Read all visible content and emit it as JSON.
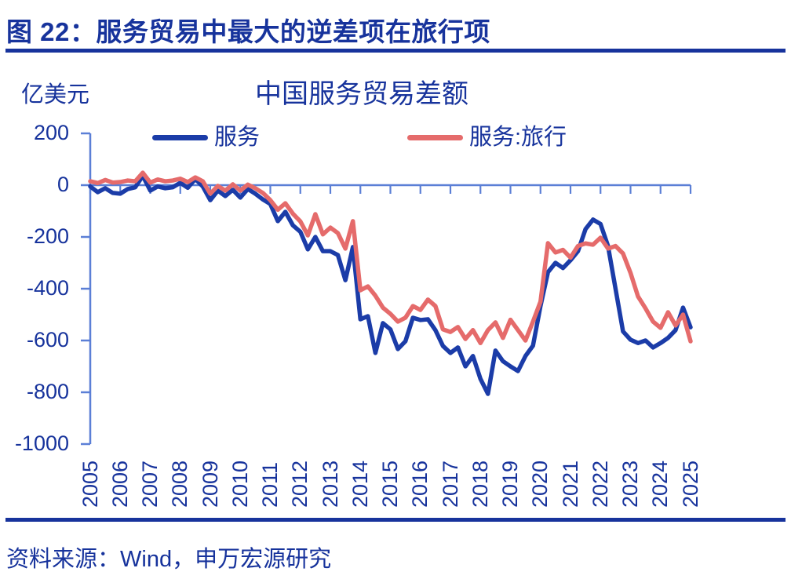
{
  "figure": {
    "title": "图 22：服务贸易中最大的逆差项在旅行项"
  },
  "source": {
    "text": "资料来源：Wind，申万宏源研究"
  },
  "colors": {
    "navy_text": "#17339C",
    "series_blue": "#1B3CA8",
    "series_red": "#E56B6B",
    "axis_blue": "#5B7FD6"
  },
  "chart_data": {
    "type": "line",
    "title": "中国服务贸易差额",
    "unit": "亿美元",
    "xlabel": "",
    "ylabel": "亿美元",
    "ylim": [
      -1000,
      200
    ],
    "grid": false,
    "legend_position": "top",
    "x_frequency": "quarterly",
    "x_range": [
      "2005Q1",
      "2025Q1"
    ],
    "x_tick_labels": [
      "2005",
      "2006",
      "2007",
      "2008",
      "2009",
      "2010",
      "2011",
      "2012",
      "2013",
      "2014",
      "2015",
      "2016",
      "2017",
      "2018",
      "2019",
      "2020",
      "2021",
      "2022",
      "2023",
      "2024",
      "2025"
    ],
    "y_ticks": [
      200,
      0,
      -200,
      -400,
      -600,
      -800,
      -1000
    ],
    "series": [
      {
        "name": "服务",
        "color": "#1B3CA8",
        "values": [
          -5,
          -27,
          -12,
          -30,
          -33,
          -15,
          -8,
          36,
          -21,
          -5,
          -12,
          -8,
          9,
          -10,
          24,
          -5,
          -58,
          -21,
          -42,
          -18,
          -48,
          -15,
          -33,
          -55,
          -73,
          -139,
          -103,
          -155,
          -180,
          -248,
          -200,
          -255,
          -255,
          -270,
          -367,
          -239,
          -518,
          -506,
          -648,
          -533,
          -557,
          -633,
          -603,
          -512,
          -521,
          -518,
          -560,
          -621,
          -648,
          -627,
          -700,
          -660,
          -748,
          -806,
          -639,
          -680,
          -700,
          -718,
          -660,
          -620,
          -467,
          -336,
          -300,
          -320,
          -290,
          -255,
          -170,
          -133,
          -150,
          -235,
          -400,
          -565,
          -597,
          -610,
          -600,
          -627,
          -610,
          -590,
          -560,
          -473,
          -549
        ]
      },
      {
        "name": "服务:旅行",
        "color": "#E56B6B",
        "values": [
          15,
          8,
          20,
          10,
          12,
          18,
          15,
          48,
          10,
          22,
          15,
          18,
          25,
          12,
          30,
          15,
          -33,
          -3,
          -21,
          3,
          -21,
          2,
          -12,
          -30,
          -58,
          -95,
          -70,
          -110,
          -140,
          -194,
          -112,
          -190,
          -164,
          -185,
          -245,
          -139,
          -406,
          -391,
          -427,
          -473,
          -497,
          -527,
          -512,
          -467,
          -482,
          -442,
          -467,
          -557,
          -567,
          -548,
          -594,
          -560,
          -610,
          -560,
          -530,
          -590,
          -520,
          -560,
          -600,
          -527,
          -450,
          -224,
          -260,
          -250,
          -280,
          -235,
          -225,
          -230,
          -203,
          -245,
          -235,
          -264,
          -339,
          -430,
          -476,
          -527,
          -551,
          -491,
          -542,
          -500,
          -603
        ]
      }
    ]
  }
}
